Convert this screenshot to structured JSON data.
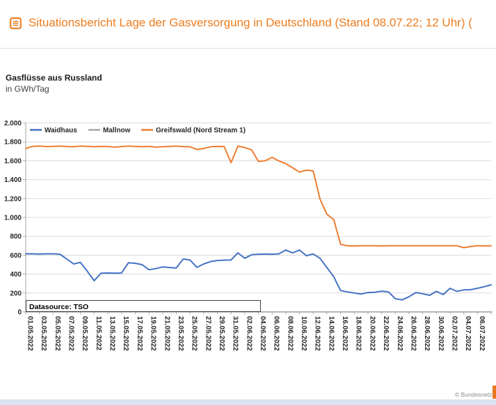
{
  "header": {
    "title": "Situationsbericht Lage der Gasversorgung in Deutschland (Stand 08.07.22; 12 Uhr) (",
    "title_color": "#ee7c1e",
    "icon": "report-list-icon"
  },
  "chart": {
    "title": "Gasflüsse aus Russland",
    "subtitle": "in GWh/Tag",
    "datasource_label": "Datasource: TSO"
  },
  "chart_data": {
    "type": "line",
    "title": "Gasflüsse aus Russland",
    "ylabel": "GWh/Tag",
    "ylim": [
      0,
      2000
    ],
    "ytick_step": 200,
    "ytick_labels": [
      "0",
      "200",
      "400",
      "600",
      "800",
      "1.000",
      "1.200",
      "1.400",
      "1.600",
      "1.800",
      "2.000"
    ],
    "grid": true,
    "legend_position": "top-inside",
    "annotations": [
      "Datasource: TSO"
    ],
    "xtick_every": 2,
    "x": [
      "01.05.2022",
      "02.05.2022",
      "03.05.2022",
      "04.05.2022",
      "05.05.2022",
      "06.05.2022",
      "07.05.2022",
      "08.05.2022",
      "09.05.2022",
      "10.05.2022",
      "11.05.2022",
      "12.05.2022",
      "13.05.2022",
      "14.05.2022",
      "15.05.2022",
      "16.05.2022",
      "17.05.2022",
      "18.05.2022",
      "19.05.2022",
      "20.05.2022",
      "21.05.2022",
      "22.05.2022",
      "23.05.2022",
      "24.05.2022",
      "25.05.2022",
      "26.05.2022",
      "27.05.2022",
      "28.05.2022",
      "29.05.2022",
      "30.05.2022",
      "31.05.2022",
      "01.06.2022",
      "02.06.2022",
      "03.06.2022",
      "04.06.2022",
      "05.06.2022",
      "06.06.2022",
      "07.06.2022",
      "08.06.2022",
      "09.06.2022",
      "10.06.2022",
      "11.06.2022",
      "12.06.2022",
      "13.06.2022",
      "14.06.2022",
      "15.06.2022",
      "16.06.2022",
      "17.06.2022",
      "18.06.2022",
      "19.06.2022",
      "20.06.2022",
      "21.06.2022",
      "22.06.2022",
      "23.06.2022",
      "24.06.2022",
      "25.06.2022",
      "26.06.2022",
      "27.06.2022",
      "28.06.2022",
      "29.06.2022",
      "30.06.2022",
      "01.07.2022",
      "02.07.2022",
      "03.07.2022",
      "04.07.2022",
      "05.07.2022",
      "06.07.2022",
      "07.07.2022",
      "08.07.2022"
    ],
    "series": [
      {
        "name": "Waidhaus",
        "color": "#4472C4",
        "values": [
          615,
          615,
          612,
          615,
          615,
          610,
          560,
          507,
          524,
          430,
          330,
          410,
          412,
          410,
          412,
          520,
          515,
          500,
          446,
          458,
          476,
          470,
          465,
          560,
          550,
          471,
          507,
          532,
          544,
          548,
          550,
          625,
          568,
          605,
          610,
          612,
          610,
          615,
          655,
          625,
          655,
          595,
          613,
          568,
          470,
          373,
          226,
          212,
          200,
          190,
          205,
          208,
          220,
          212,
          140,
          127,
          160,
          205,
          193,
          176,
          218,
          184,
          250,
          218,
          233,
          235,
          250,
          267,
          287
        ]
      },
      {
        "name": "Mallnow",
        "color": "#A5A5A5",
        "values": [
          0,
          0,
          0,
          0,
          0,
          0,
          0,
          0,
          0,
          0,
          0,
          0,
          0,
          0,
          0,
          0,
          0,
          0,
          0,
          0,
          0,
          0,
          0,
          0,
          0,
          0,
          0,
          0,
          0,
          0,
          0,
          0,
          0,
          0,
          0,
          0,
          0,
          0,
          0,
          0,
          0,
          0,
          0,
          0,
          0,
          0,
          0,
          0,
          0,
          0,
          0,
          0,
          0,
          0,
          0,
          0,
          0,
          0,
          0,
          0,
          0,
          0,
          0,
          0,
          0,
          0,
          0,
          0,
          0
        ]
      },
      {
        "name": "Greifswald (Nord Stream 1)",
        "color": "#ED7D31",
        "values": [
          1730,
          1752,
          1755,
          1750,
          1752,
          1755,
          1750,
          1748,
          1755,
          1752,
          1748,
          1752,
          1750,
          1745,
          1750,
          1755,
          1752,
          1748,
          1752,
          1745,
          1748,
          1752,
          1755,
          1750,
          1748,
          1720,
          1730,
          1748,
          1752,
          1750,
          1580,
          1755,
          1740,
          1715,
          1593,
          1600,
          1635,
          1598,
          1569,
          1525,
          1480,
          1500,
          1493,
          1194,
          1034,
          978,
          716,
          700,
          698,
          700,
          700,
          700,
          698,
          700,
          700,
          700,
          700,
          700,
          700,
          700,
          700,
          700,
          700,
          700,
          680,
          692,
          700,
          698,
          700
        ]
      }
    ]
  },
  "footer": {
    "copyright": "© Bundesnetzag",
    "logo": "bundesnetzagentur-logo-fragment",
    "logo_color": "#e87722",
    "bar_color": "#d8e2f0"
  }
}
